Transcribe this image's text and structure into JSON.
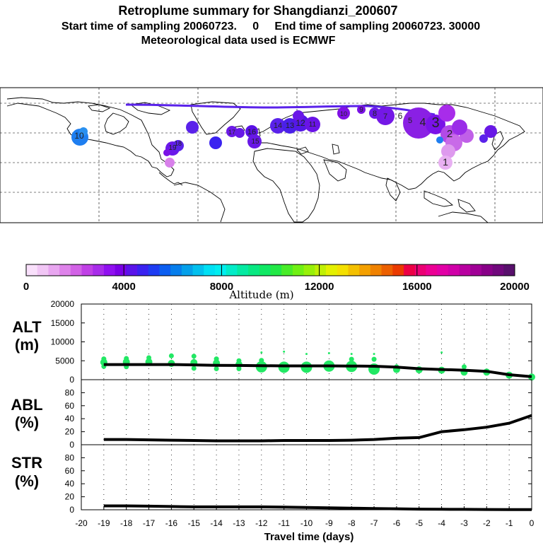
{
  "header": {
    "title": "Retroplume summary for Shangdianzi_200607",
    "line2": "Start time of sampling 20060723.     0     End time of sampling 20060723. 30000",
    "line3": "Meteorological data used is ECMWF"
  },
  "colorbar": {
    "label": "Altitude (m)",
    "ticks": [
      "0",
      "4000",
      "8000",
      "12000",
      "16000",
      "20000"
    ],
    "tick_values": [
      0,
      4000,
      8000,
      12000,
      16000,
      20000
    ],
    "colors": [
      "#f9e0fb",
      "#f1c6f5",
      "#e8a6f0",
      "#de83ea",
      "#d262e6",
      "#c040e6",
      "#a82cea",
      "#9010f0",
      "#7a00e6",
      "#5a14ea",
      "#3a22f0",
      "#1e3cf2",
      "#0c5ef0",
      "#067eec",
      "#04a0ea",
      "#02c0ee",
      "#00e0f4",
      "#00eef0",
      "#02ecc8",
      "#04eaa2",
      "#08e882",
      "#10e864",
      "#22e846",
      "#48ec28",
      "#70f014",
      "#98f00a",
      "#c0f004",
      "#e4f000",
      "#f4e000",
      "#f4c000",
      "#f4a000",
      "#f08200",
      "#ec6000",
      "#ea3a00",
      "#ec0044",
      "#ec0074",
      "#ec0094",
      "#e200a6",
      "#d000a8",
      "#b800a0",
      "#a00096",
      "#880088",
      "#70087c",
      "#58106c"
    ]
  },
  "map": {
    "plume_labels": [
      {
        "text": "10",
        "color": "#1e7ef0",
        "size": 12
      },
      {
        "text": "19",
        "color": "#6a18ea",
        "size": 10
      },
      {
        "text": "18",
        "color": "#5a22ea",
        "size": 9
      },
      {
        "text": "17",
        "color": "#6c1ae8",
        "size": 9
      },
      {
        "text": "16",
        "color": "#5a10e6",
        "size": 11
      },
      {
        "text": "15",
        "color": "#6818e6",
        "size": 10
      },
      {
        "text": "14",
        "color": "#5a22ea",
        "size": 11
      },
      {
        "text": "13",
        "color": "#4a20e8",
        "size": 11
      },
      {
        "text": "12",
        "color": "#5418e6",
        "size": 12
      },
      {
        "text": "11",
        "color": "#6a14e6",
        "size": 10
      },
      {
        "text": "10",
        "color": "#8010e4",
        "size": 9
      },
      {
        "text": "9",
        "color": "#7a12e6",
        "size": 10
      },
      {
        "text": "8",
        "color": "#6a18e8",
        "size": 11
      },
      {
        "text": "7",
        "color": "#7418e6",
        "size": 11
      },
      {
        "text": "6",
        "color": "#6a14e4",
        "size": 12
      },
      {
        "text": "5",
        "color": "#6818e6",
        "size": 11
      },
      {
        "text": "4",
        "color": "#8a20e4",
        "size": 16
      },
      {
        "text": "3",
        "color": "#7a12e8",
        "size": 20
      },
      {
        "text": "2",
        "color": "#b24ae6",
        "size": 15
      },
      {
        "text": "1",
        "color": "#d880ea",
        "size": 14
      }
    ]
  },
  "chart_data": {
    "type": "line",
    "xlabel": "Travel time (days)",
    "xlim": [
      -20,
      0
    ],
    "x_ticks": [
      "-20",
      "-19",
      "-18",
      "-17",
      "-16",
      "-15",
      "-14",
      "-13",
      "-12",
      "-11",
      "-10",
      "-9",
      "-8",
      "-7",
      "-6",
      "-5",
      "-4",
      "-3",
      "-2",
      "-1",
      "0"
    ],
    "days": [
      -19,
      -18,
      -17,
      -16,
      -15,
      -14,
      -13,
      -12,
      -11,
      -10,
      -9,
      -8,
      -7,
      -6,
      -5,
      -4,
      -3,
      -2,
      -1,
      0
    ],
    "panels": [
      {
        "name": "ALT",
        "label_line1": "ALT",
        "label_line2": "(m)",
        "ylim": [
          0,
          20000
        ],
        "y_ticks": [
          0,
          5000,
          10000,
          15000,
          20000
        ],
        "y_tick_labels": [
          "0",
          "5000",
          "10000",
          "15000",
          "20000"
        ],
        "series": [
          {
            "name": "mean altitude",
            "values": [
              4000,
              4000,
              4000,
              4000,
              3900,
              3800,
              3750,
              3700,
              3650,
              3650,
              3650,
              3600,
              3550,
              3300,
              2900,
              2700,
              2500,
              2200,
              1300,
              800
            ]
          }
        ],
        "scatter": [
          {
            "x": -19,
            "y": [
              5500,
              3500,
              4600
            ]
          },
          {
            "x": -18,
            "y": [
              5600,
              3400,
              4700
            ]
          },
          {
            "x": -17,
            "y": [
              5800,
              4700
            ]
          },
          {
            "x": -16,
            "y": [
              6300,
              4300
            ]
          },
          {
            "x": -15,
            "y": [
              6200,
              3000,
              4500
            ]
          },
          {
            "x": -14,
            "y": [
              5500,
              2900,
              4400
            ]
          },
          {
            "x": -13,
            "y": [
              5000,
              2900,
              4000
            ]
          },
          {
            "x": -12,
            "y": [
              7200,
              5100,
              3400
            ]
          },
          {
            "x": -11,
            "y": [
              7400,
              3300
            ]
          },
          {
            "x": -10,
            "y": [
              6800,
              3300
            ]
          },
          {
            "x": -9,
            "y": [
              7000,
              3600
            ]
          },
          {
            "x": -8,
            "y": [
              6800,
              5400,
              3500
            ]
          },
          {
            "x": -7,
            "y": [
              6800,
              5400,
              2800
            ]
          },
          {
            "x": -6,
            "y": [
              3400,
              2700
            ]
          },
          {
            "x": -5,
            "y": [
              2600
            ]
          },
          {
            "x": -4,
            "y": [
              7200,
              2500
            ]
          },
          {
            "x": -3,
            "y": [
              3400,
              2000
            ]
          },
          {
            "x": -2,
            "y": [
              2000
            ]
          },
          {
            "x": -1,
            "y": [
              1200
            ]
          },
          {
            "x": 0,
            "y": [
              700
            ]
          }
        ]
      },
      {
        "name": "ABL",
        "label_line1": "ABL",
        "label_line2": "(%)",
        "ylim": [
          0,
          100
        ],
        "y_ticks": [
          0,
          20,
          40,
          60,
          80
        ],
        "y_tick_labels": [
          "0",
          "20",
          "40",
          "60",
          "80"
        ],
        "series": [
          {
            "name": "ABL fraction",
            "values": [
              8,
              8,
              7.5,
              7,
              6.5,
              6,
              6,
              6,
              6.5,
              6.5,
              6.5,
              7,
              8,
              10,
              11,
              20,
              23,
              27,
              33,
              45
            ]
          }
        ]
      },
      {
        "name": "STR",
        "label_line1": "STR",
        "label_line2": "(%)",
        "ylim": [
          0,
          100
        ],
        "y_ticks": [
          0,
          20,
          40,
          60,
          80
        ],
        "y_tick_labels": [
          "0",
          "20",
          "40",
          "60",
          "80"
        ],
        "series": [
          {
            "name": "STR fraction",
            "values": [
              6,
              6,
              5.5,
              5,
              4.5,
              4.5,
              4.5,
              4.5,
              4,
              3.5,
              3,
              2.5,
              2,
              1.5,
              1,
              0.8,
              0.6,
              0.4,
              0.3,
              0.2
            ]
          }
        ]
      }
    ]
  }
}
